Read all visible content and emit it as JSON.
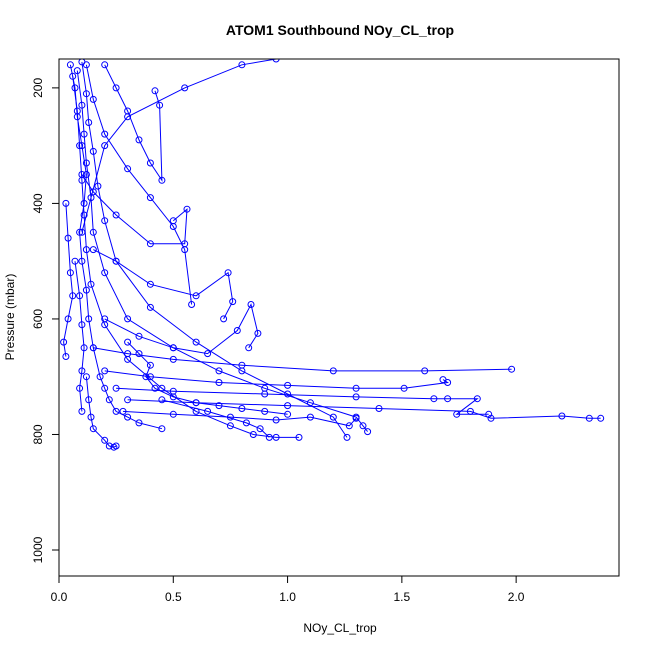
{
  "chart_data": {
    "type": "scatter",
    "title": "ATOM1 Southbound NOy_CL_trop",
    "xlabel": "NOy_CL_trop",
    "ylabel": "Pressure (mbar)",
    "xlim": [
      0,
      2.45
    ],
    "ylim": [
      1045,
      150
    ],
    "y_reversed": true,
    "xticks": [
      {
        "value": 0.0,
        "label": "0.0"
      },
      {
        "value": 0.5,
        "label": "0.5"
      },
      {
        "value": 1.0,
        "label": "1.0"
      },
      {
        "value": 1.5,
        "label": "1.5"
      },
      {
        "value": 2.0,
        "label": "2.0"
      }
    ],
    "yticks": [
      {
        "value": 200,
        "label": "200"
      },
      {
        "value": 400,
        "label": "400"
      },
      {
        "value": 600,
        "label": "600"
      },
      {
        "value": 800,
        "label": "800"
      },
      {
        "value": 1000,
        "label": "1000"
      }
    ],
    "grid": false,
    "legend": "none",
    "marker": "open-circle",
    "connected": true,
    "color": "#0000ff",
    "series": [
      {
        "profiles": [
          {
            "x": [
              0.05,
              0.07,
              0.08,
              0.1,
              0.12,
              0.11,
              0.09,
              0.1,
              0.12,
              0.13,
              0.15,
              0.18,
              0.2,
              0.22,
              0.25,
              0.3,
              0.35,
              0.45
            ],
            "y": [
              160,
              200,
              250,
              300,
              350,
              400,
              450,
              500,
              550,
              600,
              650,
              700,
              720,
              740,
              760,
              770,
              780,
              790
            ]
          },
          {
            "x": [
              0.08,
              0.1,
              0.11,
              0.12,
              0.14,
              0.15,
              0.2,
              0.3,
              0.5,
              0.7,
              0.9,
              1.1,
              1.3,
              1.33,
              1.35
            ],
            "y": [
              170,
              230,
              280,
              330,
              390,
              450,
              520,
              600,
              650,
              690,
              720,
              745,
              770,
              785,
              795
            ]
          },
          {
            "x": [
              0.1,
              0.12,
              0.13,
              0.15,
              0.17,
              0.2,
              0.25,
              0.4,
              0.6,
              0.8,
              1.0,
              1.2,
              1.26
            ],
            "y": [
              155,
              210,
              260,
              310,
              370,
              430,
              500,
              580,
              640,
              690,
              730,
              770,
              805
            ]
          },
          {
            "x": [
              0.06,
              0.08,
              0.09,
              0.1,
              0.11,
              0.12,
              0.14,
              0.2,
              0.3,
              0.45,
              0.6,
              0.75,
              0.85,
              0.95,
              1.05
            ],
            "y": [
              180,
              240,
              300,
              360,
              420,
              480,
              540,
              610,
              670,
              720,
              760,
              785,
              800,
              805,
              805
            ]
          },
          {
            "x": [
              0.12,
              0.15,
              0.2,
              0.3,
              0.4,
              0.5,
              0.55,
              0.58
            ],
            "y": [
              160,
              220,
              280,
              340,
              390,
              440,
              480,
              575
            ]
          },
          {
            "x": [
              0.2,
              0.25,
              0.3,
              0.35,
              0.4,
              0.45,
              0.44,
              0.42
            ],
            "y": [
              160,
              200,
              240,
              290,
              330,
              360,
              230,
              205
            ]
          },
          {
            "x": [
              0.1,
              0.15,
              0.25,
              0.4,
              0.55,
              0.56,
              0.5
            ],
            "y": [
              350,
              380,
              420,
              470,
              470,
              410,
              430
            ]
          },
          {
            "x": [
              0.15,
              0.25,
              0.4,
              0.6,
              0.74,
              0.76,
              0.72
            ],
            "y": [
              480,
              500,
              540,
              560,
              520,
              570,
              600
            ]
          },
          {
            "x": [
              0.2,
              0.35,
              0.5,
              0.65,
              0.78,
              0.84,
              0.87,
              0.83
            ],
            "y": [
              600,
              630,
              650,
              660,
              620,
              575,
              625,
              650
            ]
          },
          {
            "x": [
              0.15,
              0.3,
              0.5,
              0.8,
              1.2,
              1.6,
              1.98
            ],
            "y": [
              650,
              660,
              670,
              680,
              690,
              690,
              687
            ]
          },
          {
            "x": [
              0.2,
              0.4,
              0.7,
              1.0,
              1.3,
              1.51,
              1.7,
              1.68
            ],
            "y": [
              690,
              700,
              710,
              715,
              720,
              720,
              710,
              705
            ]
          },
          {
            "x": [
              0.25,
              0.5,
              0.9,
              1.3,
              1.64,
              1.7,
              1.83,
              1.74,
              1.88
            ],
            "y": [
              720,
              725,
              730,
              735,
              738,
              738,
              738,
              765,
              765
            ]
          },
          {
            "x": [
              0.3,
              0.6,
              1.0,
              1.4,
              1.8,
              1.89,
              2.2,
              2.32,
              2.37
            ],
            "y": [
              740,
              745,
              750,
              755,
              760,
              772,
              768,
              772,
              772
            ]
          },
          {
            "x": [
              0.28,
              0.5,
              0.75,
              0.95,
              1.1,
              1.27,
              1.3
            ],
            "y": [
              760,
              765,
              770,
              775,
              770,
              785,
              772
            ]
          },
          {
            "x": [
              0.12,
              0.13,
              0.14,
              0.15,
              0.2,
              0.22,
              0.24,
              0.25
            ],
            "y": [
              700,
              740,
              770,
              790,
              810,
              820,
              822,
              820
            ]
          },
          {
            "x": [
              0.45,
              0.65,
              0.82,
              0.88,
              0.92
            ],
            "y": [
              740,
              760,
              780,
              790,
              805
            ]
          },
          {
            "x": [
              0.1,
              0.2,
              0.3,
              0.55,
              0.8,
              0.95
            ],
            "y": [
              450,
              300,
              250,
              200,
              160,
              150
            ]
          },
          {
            "x": [
              0.03,
              0.04,
              0.05,
              0.06,
              0.04,
              0.02,
              0.03
            ],
            "y": [
              400,
              460,
              520,
              560,
              600,
              640,
              665
            ]
          },
          {
            "x": [
              0.07,
              0.09,
              0.1,
              0.11,
              0.1,
              0.09,
              0.1
            ],
            "y": [
              500,
              560,
              610,
              650,
              690,
              720,
              760
            ]
          },
          {
            "x": [
              0.3,
              0.35,
              0.4,
              0.38,
              0.42,
              0.5,
              0.6,
              0.7,
              0.8,
              0.9,
              1.0
            ],
            "y": [
              640,
              660,
              680,
              700,
              720,
              735,
              745,
              750,
              755,
              760,
              765
            ]
          }
        ]
      }
    ]
  }
}
